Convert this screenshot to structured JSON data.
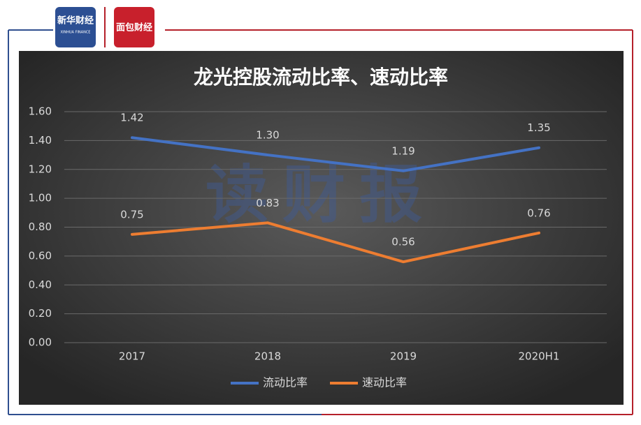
{
  "header": {
    "logo_left": "新华财经",
    "logo_left_sub": "XINHUA FINANCE",
    "logo_right": "面包财经"
  },
  "chart_data": {
    "type": "line",
    "title": "龙光控股流动比率、速动比率",
    "watermark": "读财报",
    "categories": [
      "2017",
      "2018",
      "2019",
      "2020H1"
    ],
    "series": [
      {
        "name": "流动比率",
        "color": "#4472c4",
        "values": [
          1.42,
          1.3,
          1.19,
          1.35
        ],
        "value_labels": [
          "1.42",
          "1.30",
          "1.19",
          "1.35"
        ]
      },
      {
        "name": "速动比率",
        "color": "#ed7d31",
        "values": [
          0.75,
          0.83,
          0.56,
          0.76
        ],
        "value_labels": [
          "0.75",
          "0.83",
          "0.56",
          "0.76"
        ]
      }
    ],
    "ylim": [
      0,
      1.6
    ],
    "yticks": [
      {
        "value": 0,
        "label": "0.00"
      },
      {
        "value": 0.2,
        "label": "0.20"
      },
      {
        "value": 0.4,
        "label": "0.40"
      },
      {
        "value": 0.6,
        "label": "0.60"
      },
      {
        "value": 0.8,
        "label": "0.80"
      },
      {
        "value": 1,
        "label": "1.00"
      },
      {
        "value": 1.2,
        "label": "1.20"
      },
      {
        "value": 1.4,
        "label": "1.40"
      },
      {
        "value": 1.6,
        "label": "1.60"
      }
    ],
    "grid": true,
    "legend": "bottom"
  }
}
